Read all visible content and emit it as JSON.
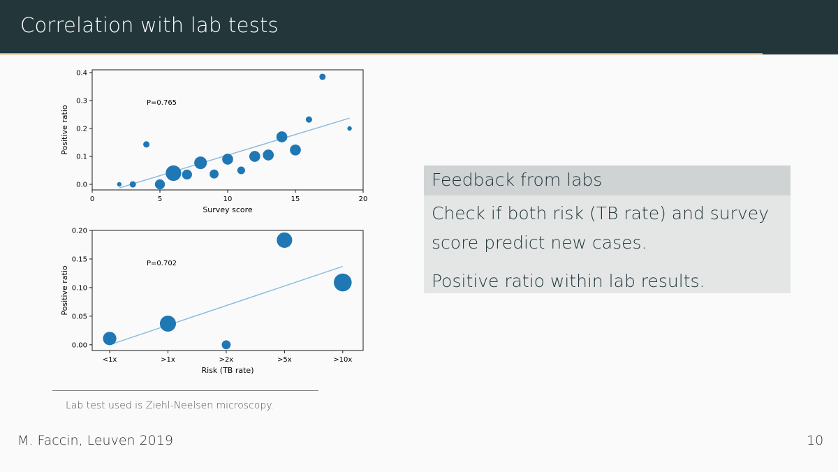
{
  "slide": {
    "title": "Correlation with lab tests",
    "footer_left": "M. Faccin, Leuven 2019",
    "page_number": "10",
    "footnote": "Lab test used is Ziehl-Neelsen microscopy."
  },
  "block": {
    "title": "Feedback from labs",
    "paragraphs": [
      "Check if both risk (TB rate) and survey score predict new cases.",
      "Positive ratio within lab results."
    ]
  },
  "colors": {
    "header_bg": "#23373b",
    "accent_rule": "#e5a14f",
    "marker": "#1f77b4",
    "fit_line": "#8fbbd9"
  },
  "chart_data": [
    {
      "type": "scatter",
      "xlabel": "Survey score",
      "ylabel": "Positive ratio",
      "annotation": "P=0.765",
      "xlim": [
        0,
        20
      ],
      "ylim": [
        -0.02,
        0.41
      ],
      "xticks": [
        0,
        5,
        10,
        15,
        20
      ],
      "xtick_labels": [
        "0",
        "5",
        "10",
        "15",
        "20"
      ],
      "yticks": [
        0.0,
        0.1,
        0.2,
        0.3,
        0.4
      ],
      "ytick_labels": [
        "0.0",
        "0.1",
        "0.2",
        "0.3",
        "0.4"
      ],
      "points": [
        {
          "x": 2,
          "y": 0.0,
          "n": 1
        },
        {
          "x": 3,
          "y": 0.0,
          "n": 2
        },
        {
          "x": 4,
          "y": 0.143,
          "n": 2
        },
        {
          "x": 5,
          "y": 0.0,
          "n": 5
        },
        {
          "x": 6,
          "y": 0.04,
          "n": 12
        },
        {
          "x": 7,
          "y": 0.035,
          "n": 5
        },
        {
          "x": 8,
          "y": 0.077,
          "n": 8
        },
        {
          "x": 9,
          "y": 0.037,
          "n": 4
        },
        {
          "x": 10,
          "y": 0.09,
          "n": 6
        },
        {
          "x": 11,
          "y": 0.05,
          "n": 3
        },
        {
          "x": 12,
          "y": 0.1,
          "n": 6
        },
        {
          "x": 13,
          "y": 0.105,
          "n": 6
        },
        {
          "x": 14,
          "y": 0.17,
          "n": 6
        },
        {
          "x": 15,
          "y": 0.123,
          "n": 6
        },
        {
          "x": 16,
          "y": 0.232,
          "n": 2
        },
        {
          "x": 17,
          "y": 0.385,
          "n": 2
        },
        {
          "x": 19,
          "y": 0.2,
          "n": 1
        }
      ],
      "fit": {
        "x": [
          2,
          19
        ],
        "y": [
          -0.013,
          0.237
        ]
      }
    },
    {
      "type": "scatter",
      "xlabel": "Risk (TB rate)",
      "ylabel": "Positive ratio",
      "annotation": "P=0.702",
      "categories": [
        "<1x",
        ">1x",
        ">2x",
        ">5x",
        ">10x"
      ],
      "ylim": [
        -0.01,
        0.2
      ],
      "yticks": [
        0.0,
        0.05,
        0.1,
        0.15,
        0.2
      ],
      "ytick_labels": [
        "0.00",
        "0.05",
        "0.10",
        "0.15",
        "0.20"
      ],
      "points": [
        {
          "category": "<1x",
          "y": 0.011,
          "n": 9
        },
        {
          "category": ">1x",
          "y": 0.037,
          "n": 13
        },
        {
          "category": ">2x",
          "y": 0.0,
          "n": 4
        },
        {
          "category": ">5x",
          "y": 0.183,
          "n": 12
        },
        {
          "category": ">10x",
          "y": 0.109,
          "n": 16
        }
      ],
      "fit": {
        "x": [
          "<1x",
          ">10x"
        ],
        "y": [
          0.0,
          0.137
        ]
      }
    }
  ]
}
